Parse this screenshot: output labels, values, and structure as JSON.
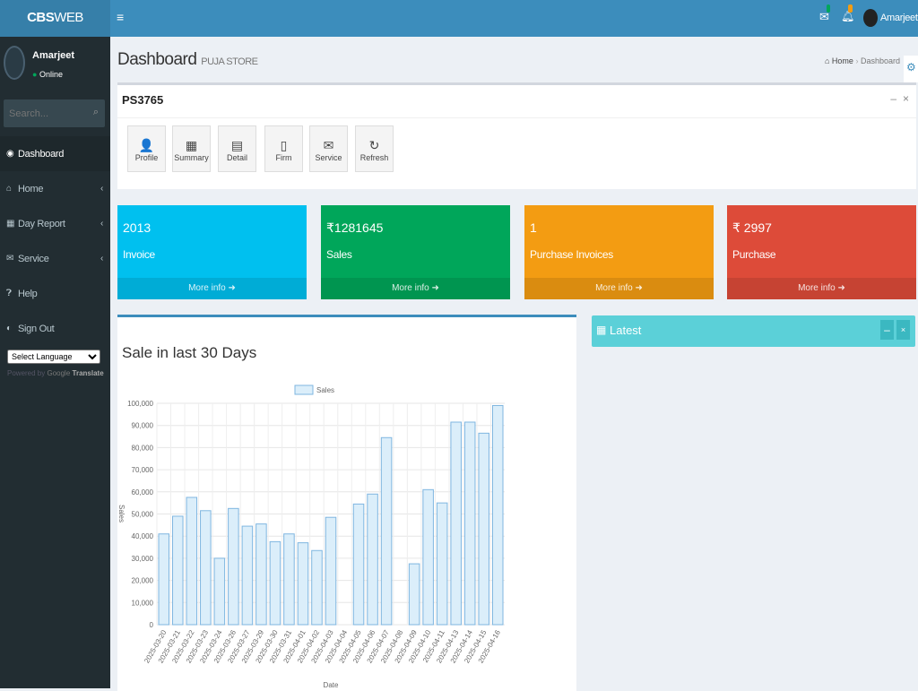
{
  "app": {
    "logo_bold": "CBS",
    "logo_rest": "WEB",
    "menu_icon": "hamburger-icon"
  },
  "topbar": {
    "user": "Amarjeet",
    "mail_badge_color": "#00a65a",
    "bell_badge_color": "#f39c12"
  },
  "sidebar": {
    "user": "Amarjeet",
    "status": "Online",
    "search_placeholder": "Search...",
    "items": [
      {
        "label": "Dashboard",
        "icon": "dashboard-icon"
      },
      {
        "label": "Home",
        "icon": "home-icon"
      },
      {
        "label": "Day Report",
        "icon": "table-icon"
      },
      {
        "label": "Service",
        "icon": "envelope-icon"
      },
      {
        "label": "Help",
        "icon": "question-icon"
      },
      {
        "label": "Sign Out",
        "icon": "signout-icon"
      }
    ],
    "language": "Select Language",
    "powered_by": "Powered by",
    "translate": "Translate"
  },
  "header": {
    "title": "Dashboard",
    "subtitle": "PUJA STORE",
    "breadcrumb_home": "Home",
    "breadcrumb_current": "Dashboard"
  },
  "panel": {
    "title": "PS3765",
    "tools": [
      {
        "label": "Profile",
        "icon": "👤"
      },
      {
        "label": "Summary",
        "icon": "▦"
      },
      {
        "label": "Detail",
        "icon": "▤"
      },
      {
        "label": "Firm",
        "icon": "▯"
      },
      {
        "label": "Service",
        "icon": "✉"
      },
      {
        "label": "Refresh",
        "icon": "↻"
      }
    ]
  },
  "stats": [
    {
      "value": "2013",
      "label": "Invoice",
      "more": "More info",
      "color": "#00c0ef"
    },
    {
      "value": "₹1281645",
      "label": "Sales",
      "more": "More info",
      "color": "#00a65a"
    },
    {
      "value": "1",
      "label": "Purchase Invoices",
      "more": "More info",
      "color": "#f39c12"
    },
    {
      "value": "₹ 2997",
      "label": "Purchase",
      "more": "More info",
      "color": "#dd4b39"
    }
  ],
  "chart_title": "Sale in last 30 Days",
  "latest": {
    "title": "Latest"
  },
  "chart_data": {
    "type": "bar",
    "legend": "Sales",
    "legend_position": "top",
    "xlabel": "Date",
    "ylabel": "Sales",
    "ylim": [
      0,
      100000
    ],
    "yticks": [
      "0",
      "10,000",
      "20,000",
      "30,000",
      "40,000",
      "50,000",
      "60,000",
      "70,000",
      "80,000",
      "90,000",
      "100,000"
    ],
    "categories": [
      "2025-03-20",
      "2025-03-21",
      "2025-03-22",
      "2025-03-23",
      "2025-03-24",
      "2025-03-26",
      "2025-03-27",
      "2025-03-29",
      "2025-03-30",
      "2025-03-31",
      "2025-04-01",
      "2025-04-02",
      "2025-04-03",
      "2025-04-04",
      "2025-04-05",
      "2025-04-06",
      "2025-04-07",
      "2025-04-08",
      "2025-04-09",
      "2025-04-10",
      "2025-04-11",
      "2025-04-13",
      "2025-04-14",
      "2025-04-15",
      "2025-04-16"
    ],
    "values": [
      41000,
      49000,
      57500,
      51500,
      30000,
      52500,
      44500,
      45500,
      37500,
      41000,
      37000,
      33500,
      48500,
      0,
      54500,
      59000,
      84500,
      0,
      27500,
      61000,
      55000,
      91500,
      91500,
      86500,
      99000
    ]
  }
}
